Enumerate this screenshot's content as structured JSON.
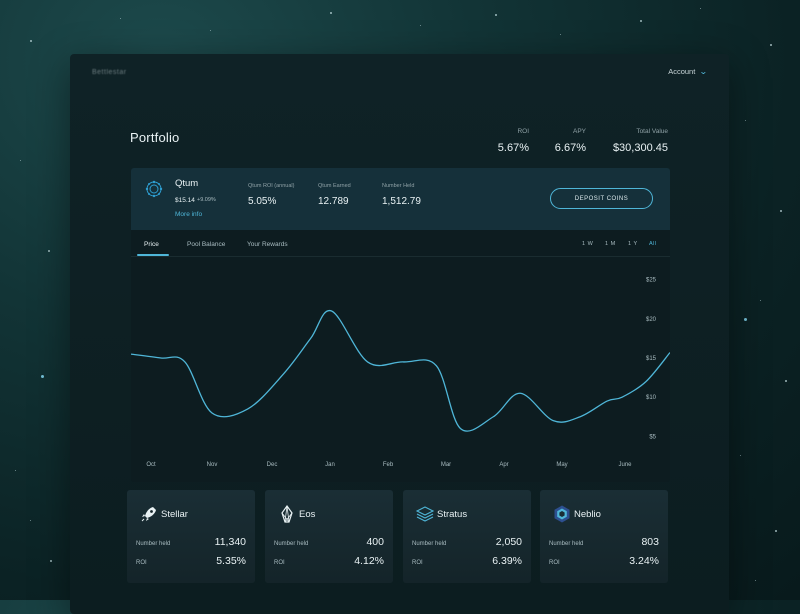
{
  "app": {
    "brand": "Bettlestar"
  },
  "header": {
    "account_label": "Account"
  },
  "portfolio": {
    "title": "Portfolio",
    "stats": [
      {
        "label": "ROI",
        "value": "5.67%"
      },
      {
        "label": "APY",
        "value": "6.67%"
      },
      {
        "label": "Total Value",
        "value": "$30,300.45"
      }
    ]
  },
  "coin": {
    "name": "Qtum",
    "price": "$15.14",
    "change": "+9.09%",
    "more_info": "More info",
    "stats": [
      {
        "label": "Qtum ROI (annual)",
        "value": "5.05%"
      },
      {
        "label": "Qtum Earned",
        "value": "12.789"
      },
      {
        "label": "Number Held",
        "value": "1,512.79"
      }
    ],
    "deposit_label": "DEPOSIT COINS"
  },
  "chart_tabs": [
    "Price",
    "Pool Balance",
    "Your Rewards"
  ],
  "active_tab": "Price",
  "ranges": [
    "1 W",
    "1 M",
    "1 Y",
    "All"
  ],
  "active_range": "All",
  "chart_data": {
    "type": "line",
    "title": "",
    "xlabel": "",
    "ylabel": "",
    "categories": [
      "Oct",
      "Nov",
      "Dec",
      "Jan",
      "Feb",
      "Mar",
      "Apr",
      "May",
      "June"
    ],
    "y_ticks": [
      "$25",
      "$20",
      "$15",
      "$10",
      "$5"
    ],
    "y_tick_values": [
      25,
      20,
      15,
      10,
      5
    ],
    "ylim": [
      3,
      27
    ],
    "xlim": [
      0,
      9
    ],
    "grid": false,
    "series": [
      {
        "color": "#4fb6d8",
        "x": [
          0,
          0.5,
          0.9,
          1.35,
          1.95,
          2.55,
          3.0,
          3.35,
          3.95,
          4.55,
          5.1,
          5.5,
          6.05,
          6.5,
          7.05,
          7.5,
          7.95,
          8.2,
          8.6,
          9.0
        ],
        "values": [
          15.5,
          15.0,
          14.5,
          8.0,
          8.5,
          13.0,
          17.5,
          21.0,
          14.5,
          14.5,
          14.0,
          6.0,
          7.5,
          10.5,
          7.0,
          7.5,
          9.5,
          10.0,
          12.0,
          15.7
        ]
      }
    ]
  },
  "holdings": [
    {
      "name": "Stellar",
      "icon": "rocket-icon",
      "held_label": "Number held",
      "held": "11,340",
      "roi_label": "ROI",
      "roi": "5.35%"
    },
    {
      "name": "Eos",
      "icon": "eos-icon",
      "held_label": "Number held",
      "held": "400",
      "roi_label": "ROI",
      "roi": "4.12%"
    },
    {
      "name": "Stratus",
      "icon": "stratus-icon",
      "held_label": "Number held",
      "held": "2,050",
      "roi_label": "ROI",
      "roi": "6.39%"
    },
    {
      "name": "Neblio",
      "icon": "neblio-icon",
      "held_label": "Number held",
      "held": "803",
      "roi_label": "ROI",
      "roi": "3.24%"
    }
  ],
  "colors": {
    "accent": "#4fb6d8",
    "panel": "#0f2226",
    "card": "#15303a"
  }
}
